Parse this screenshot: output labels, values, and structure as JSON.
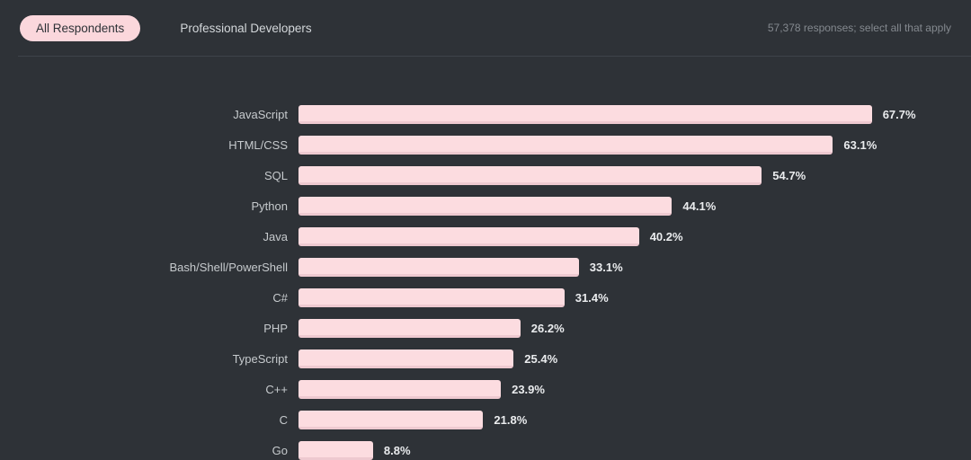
{
  "header": {
    "tabs": [
      {
        "label": "All Respondents",
        "active": true
      },
      {
        "label": "Professional Developers",
        "active": false
      }
    ],
    "note": "57,378 responses; select all that apply"
  },
  "chart_data": {
    "type": "bar",
    "orientation": "horizontal",
    "title": "",
    "xlabel": "",
    "ylabel": "",
    "xlim": [
      0,
      100
    ],
    "grid": false,
    "legend": "none",
    "value_suffix": "%",
    "categories": [
      "JavaScript",
      "HTML/CSS",
      "SQL",
      "Python",
      "Java",
      "Bash/Shell/PowerShell",
      "C#",
      "PHP",
      "TypeScript",
      "C++",
      "C",
      "Go"
    ],
    "values": [
      67.7,
      63.1,
      54.7,
      44.1,
      40.2,
      33.1,
      31.4,
      26.2,
      25.4,
      23.9,
      21.8,
      8.8
    ],
    "colors": {
      "bar_fill": "#fcdce0",
      "bar_edge": "#eec9d0",
      "background": "#2e3237",
      "label_text": "#c6cacd",
      "value_text": "#eaecee"
    }
  }
}
